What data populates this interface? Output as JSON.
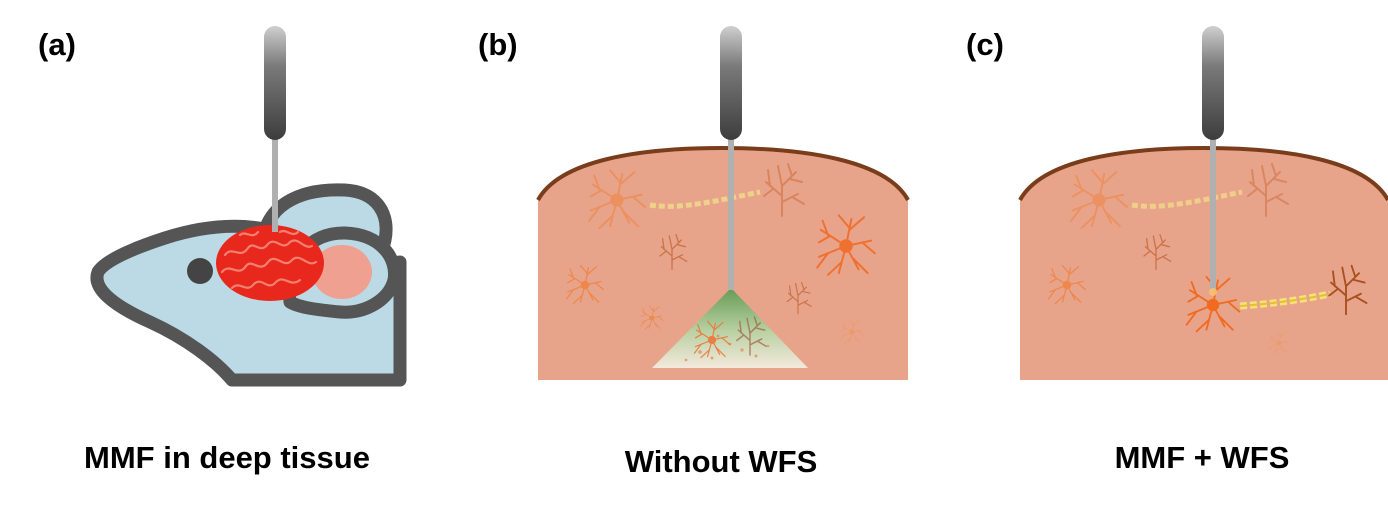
{
  "panels": [
    {
      "label": "(a)",
      "caption": "MMF in deep tissue"
    },
    {
      "label": "(b)",
      "caption": "Without WFS"
    },
    {
      "label": "(c)",
      "caption": "MMF + WFS"
    }
  ],
  "colors": {
    "tissue": "#e8a48a",
    "tissue_outline": "#7a3d1c",
    "neuron": "#f0803c",
    "neuron_dim": "#e9996c",
    "axon": "#f2e08a",
    "mouse_body": "#bcd9e6",
    "mouse_outline": "#555555",
    "brain": "#e8281c",
    "fiber_holder": "#555555",
    "fiber": "#b0b0b0",
    "speckle_green": "#7fb57a"
  }
}
